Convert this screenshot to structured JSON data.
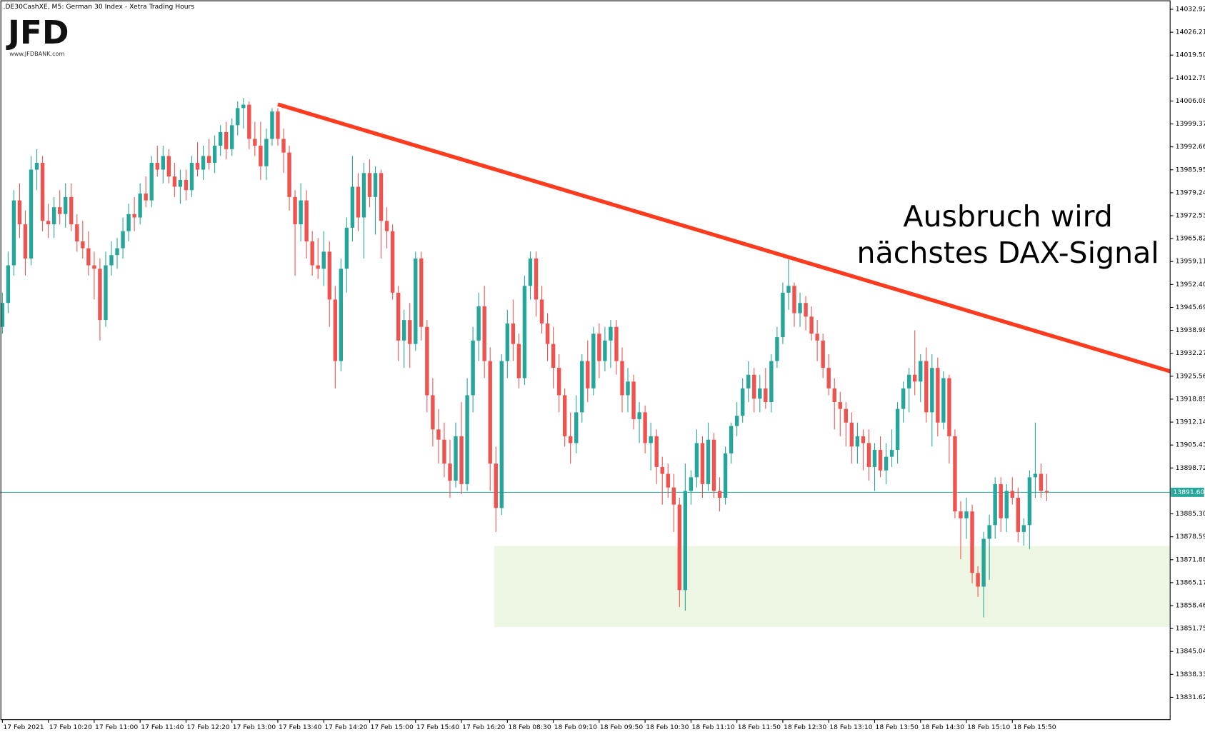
{
  "chart_data": {
    "type": "candlestick",
    "title": ".DE30CashXE, M5:  German 30 Index  - Xetra Trading Hours",
    "logo": "JFD",
    "logo_url": "www.JFDBANK.com",
    "annotation": [
      "Ausbruch wird",
      "nächstes DAX-Signal"
    ],
    "up_color": "#26a69a",
    "down_color": "#ef5350",
    "xlim": [
      -0.4,
      203.5
    ],
    "ylim": [
      13825.09,
      14035.63
    ],
    "xticks": [
      {
        "value": 0,
        "label": "17 Feb 2021"
      },
      {
        "value": 8,
        "label": "17 Feb 10:20"
      },
      {
        "value": 16,
        "label": "17 Feb 11:00"
      },
      {
        "value": 24,
        "label": "17 Feb 11:40"
      },
      {
        "value": 32,
        "label": "17 Feb 12:20"
      },
      {
        "value": 40,
        "label": "17 Feb 13:00"
      },
      {
        "value": 48,
        "label": "17 Feb 13:40"
      },
      {
        "value": 56,
        "label": "17 Feb 14:20"
      },
      {
        "value": 64,
        "label": "17 Feb 15:00"
      },
      {
        "value": 72,
        "label": "17 Feb 15:40"
      },
      {
        "value": 80,
        "label": "17 Feb 16:20"
      },
      {
        "value": 88,
        "label": "18 Feb 08:30"
      },
      {
        "value": 96,
        "label": "18 Feb 09:10"
      },
      {
        "value": 104,
        "label": "18 Feb 09:50"
      },
      {
        "value": 112,
        "label": "18 Feb 10:30"
      },
      {
        "value": 120,
        "label": "18 Feb 11:10"
      },
      {
        "value": 128,
        "label": "18 Feb 11:50"
      },
      {
        "value": 136,
        "label": "18 Feb 12:30"
      },
      {
        "value": 144,
        "label": "18 Feb 13:10"
      },
      {
        "value": 152,
        "label": "18 Feb 13:50"
      },
      {
        "value": 160,
        "label": "18 Feb 14:30"
      },
      {
        "value": 168,
        "label": "18 Feb 15:10"
      },
      {
        "value": 176,
        "label": "18 Feb 15:50"
      }
    ],
    "yticks": [
      14032.92,
      14026.21,
      {
        "value": 14019.5,
        "label": "14019.50"
      },
      14012.79,
      14006.08,
      13999.37,
      13992.66,
      13985.95,
      13979.24,
      13972.53,
      13965.82,
      13959.11,
      {
        "value": 13952.4,
        "label": "13952.40"
      },
      13945.69,
      13938.98,
      13932.27,
      13925.56,
      13918.85,
      13912.14,
      13905.43,
      13898.72,
      {
        "value": 13885.3,
        "label": "13885.30"
      },
      13878.59,
      13871.88,
      13865.17,
      13858.46,
      13851.75,
      13845.04,
      13838.33,
      13831.62
    ],
    "current_price": {
      "value": 13891.6,
      "label": "13891.60",
      "color": "#26a69a"
    },
    "trendline": {
      "color": "#ff3b1f",
      "points": [
        [
          48,
          14005.1
        ],
        [
          203.5,
          13927.0
        ]
      ]
    },
    "support_zone": {
      "color": "#eef7e3",
      "start": 85.7,
      "from": 13852.2,
      "to": 13875.9
    },
    "candles": [
      [
        13940,
        13950,
        13938,
        13947
      ],
      [
        13947,
        13962,
        13944,
        13958
      ],
      [
        13958,
        13980,
        13955,
        13977
      ],
      [
        13977,
        13982,
        13966,
        13970
      ],
      [
        13970,
        13974,
        13955,
        13960
      ],
      [
        13960,
        13990,
        13958,
        13986
      ],
      [
        13986,
        13992,
        13980,
        13988
      ],
      [
        13988,
        13990,
        13968,
        13971
      ],
      [
        13971,
        13976,
        13966,
        13970
      ],
      [
        13970,
        13978,
        13966,
        13975
      ],
      [
        13975,
        13980,
        13970,
        13973
      ],
      [
        13973,
        13982,
        13969,
        13978
      ],
      [
        13978,
        13982,
        13968,
        13970
      ],
      [
        13970,
        13973,
        13962,
        13965
      ],
      [
        13965,
        13971,
        13960,
        13963
      ],
      [
        13963,
        13968,
        13955,
        13958
      ],
      [
        13958,
        13962,
        13948,
        13957
      ],
      [
        13957,
        13960,
        13936,
        13942
      ],
      [
        13942,
        13962,
        13940,
        13958
      ],
      [
        13958,
        13965,
        13955,
        13961
      ],
      [
        13961,
        13966,
        13957,
        13963
      ],
      [
        13963,
        13972,
        13960,
        13968
      ],
      [
        13968,
        13976,
        13965,
        13973
      ],
      [
        13973,
        13978,
        13968,
        13972
      ],
      [
        13972,
        13982,
        13970,
        13979
      ],
      [
        13979,
        13984,
        13975,
        13977
      ],
      [
        13977,
        13990,
        13975,
        13988
      ],
      [
        13988,
        13993,
        13984,
        13986
      ],
      [
        13986,
        13993,
        13982,
        13990
      ],
      [
        13990,
        13992,
        13982,
        13984
      ],
      [
        13984,
        13988,
        13978,
        13981
      ],
      [
        13981,
        13986,
        13976,
        13983
      ],
      [
        13983,
        13986,
        13977,
        13980
      ],
      [
        13980,
        13990,
        13978,
        13988
      ],
      [
        13988,
        13994,
        13984,
        13986
      ],
      [
        13986,
        13993,
        13983,
        13990
      ],
      [
        13990,
        13995,
        13986,
        13988
      ],
      [
        13988,
        13996,
        13985,
        13993
      ],
      [
        13993,
        13999,
        13990,
        13997
      ],
      [
        13997,
        14000,
        13989,
        13992
      ],
      [
        13992,
        14001,
        13990,
        13999
      ],
      [
        13999,
        14006,
        13996,
        14004
      ],
      [
        14004,
        14007,
        13998,
        14005
      ],
      [
        14005,
        14006,
        13992,
        13995
      ],
      [
        13995,
        14000,
        13990,
        13993
      ],
      [
        13993,
        14000,
        13983,
        13987
      ],
      [
        13987,
        13998,
        13983,
        13995
      ],
      [
        13995,
        14004,
        13993,
        14003
      ],
      [
        14003,
        14004,
        13993,
        13995
      ],
      [
        13995,
        13998,
        13985,
        13991
      ],
      [
        13991,
        13993,
        13974,
        13978
      ],
      [
        13978,
        13980,
        13955,
        13970
      ],
      [
        13970,
        13982,
        13965,
        13977
      ],
      [
        13977,
        13980,
        13960,
        13965
      ],
      [
        13965,
        13968,
        13955,
        13958
      ],
      [
        13958,
        13966,
        13954,
        13957
      ],
      [
        13957,
        13968,
        13952,
        13962
      ],
      [
        13962,
        13965,
        13940,
        13948
      ],
      [
        13948,
        13952,
        13922,
        13930
      ],
      [
        13930,
        13960,
        13927,
        13957
      ],
      [
        13957,
        13972,
        13950,
        13969
      ],
      [
        13969,
        13990,
        13965,
        13981
      ],
      [
        13981,
        13985,
        13968,
        13972
      ],
      [
        13972,
        13988,
        13960,
        13985
      ],
      [
        13985,
        13989,
        13975,
        13978
      ],
      [
        13978,
        13987,
        13967,
        13985
      ],
      [
        13985,
        13986,
        13960,
        13971
      ],
      [
        13971,
        13975,
        13963,
        13968
      ],
      [
        13968,
        13970,
        13948,
        13950
      ],
      [
        13950,
        13952,
        13930,
        13936
      ],
      [
        13936,
        13945,
        13928,
        13942
      ],
      [
        13942,
        13947,
        13928,
        13935
      ],
      [
        13935,
        13962,
        13933,
        13960
      ],
      [
        13960,
        13962,
        13936,
        13940
      ],
      [
        13940,
        13942,
        13915,
        13920
      ],
      [
        13920,
        13925,
        13905,
        13910
      ],
      [
        13910,
        13916,
        13900,
        13907
      ],
      [
        13907,
        13912,
        13896,
        13900
      ],
      [
        13900,
        13907,
        13890,
        13895
      ],
      [
        13895,
        13912,
        13893,
        13908
      ],
      [
        13908,
        13918,
        13891,
        13894
      ],
      [
        13894,
        13925,
        13892,
        13920
      ],
      [
        13920,
        13940,
        13915,
        13936
      ],
      [
        13936,
        13950,
        13930,
        13946
      ],
      [
        13946,
        13952,
        13925,
        13930
      ],
      [
        13930,
        13934,
        13892,
        13900
      ],
      [
        13900,
        13905,
        13880,
        13887
      ],
      [
        13887,
        13932,
        13885,
        13930
      ],
      [
        13930,
        13945,
        13925,
        13941
      ],
      [
        13941,
        13948,
        13930,
        13935
      ],
      [
        13935,
        13938,
        13922,
        13925
      ],
      [
        13925,
        13955,
        13923,
        13952
      ],
      [
        13952,
        13962,
        13948,
        13960
      ],
      [
        13960,
        13962,
        13943,
        13948
      ],
      [
        13948,
        13952,
        13938,
        13941
      ],
      [
        13941,
        13944,
        13930,
        13935
      ],
      [
        13935,
        13940,
        13922,
        13928
      ],
      [
        13928,
        13932,
        13915,
        13920
      ],
      [
        13920,
        13922,
        13905,
        13908
      ],
      [
        13908,
        13915,
        13900,
        13906
      ],
      [
        13906,
        13920,
        13903,
        13915
      ],
      [
        13915,
        13932,
        13912,
        13930
      ],
      [
        13930,
        13936,
        13918,
        13922
      ],
      [
        13922,
        13940,
        13920,
        13938
      ],
      [
        13938,
        13941,
        13925,
        13930
      ],
      [
        13930,
        13940,
        13927,
        13936
      ],
      [
        13936,
        13942,
        13928,
        13940
      ],
      [
        13940,
        13942,
        13926,
        13930
      ],
      [
        13930,
        13934,
        13915,
        13920
      ],
      [
        13920,
        13928,
        13915,
        13924
      ],
      [
        13924,
        13926,
        13910,
        13913
      ],
      [
        13913,
        13918,
        13906,
        13915
      ],
      [
        13915,
        13917,
        13903,
        13906
      ],
      [
        13906,
        13912,
        13898,
        13908
      ],
      [
        13908,
        13910,
        13894,
        13899
      ],
      [
        13899,
        13902,
        13888,
        13897
      ],
      [
        13897,
        13900,
        13890,
        13893
      ],
      [
        13893,
        13897,
        13880,
        13888
      ],
      [
        13888,
        13890,
        13858,
        13863
      ],
      [
        13863,
        13900,
        13857,
        13892
      ],
      [
        13892,
        13898,
        13888,
        13896
      ],
      [
        13896,
        13910,
        13893,
        13906
      ],
      [
        13906,
        13908,
        13890,
        13894
      ],
      [
        13894,
        13912,
        13892,
        13907
      ],
      [
        13907,
        13909,
        13890,
        13892
      ],
      [
        13892,
        13896,
        13886,
        13890
      ],
      [
        13890,
        13905,
        13888,
        13903
      ],
      [
        13903,
        13912,
        13900,
        13911
      ],
      [
        13911,
        13918,
        13908,
        13914
      ],
      [
        13914,
        13925,
        13912,
        13922
      ],
      [
        13922,
        13930,
        13918,
        13926
      ],
      [
        13926,
        13928,
        13915,
        13919
      ],
      [
        13919,
        13926,
        13915,
        13922
      ],
      [
        13922,
        13928,
        13916,
        13918
      ],
      [
        13918,
        13932,
        13915,
        13930
      ],
      [
        13930,
        13940,
        13928,
        13937
      ],
      [
        13937,
        13953,
        13935,
        13950
      ],
      [
        13950,
        13960,
        13945,
        13952
      ],
      [
        13952,
        13953,
        13940,
        13944
      ],
      [
        13944,
        13950,
        13940,
        13947
      ],
      [
        13947,
        13949,
        13939,
        13943
      ],
      [
        13943,
        13946,
        13936,
        13938
      ],
      [
        13938,
        13942,
        13930,
        13936
      ],
      [
        13936,
        13938,
        13925,
        13928
      ],
      [
        13928,
        13932,
        13920,
        13922
      ],
      [
        13922,
        13925,
        13910,
        13918
      ],
      [
        13918,
        13921,
        13908,
        13916
      ],
      [
        13916,
        13918,
        13905,
        13912
      ],
      [
        13912,
        13915,
        13900,
        13905
      ],
      [
        13905,
        13912,
        13900,
        13908
      ],
      [
        13908,
        13910,
        13898,
        13906
      ],
      [
        13906,
        13910,
        13895,
        13899
      ],
      [
        13899,
        13906,
        13892,
        13904
      ],
      [
        13904,
        13908,
        13896,
        13898
      ],
      [
        13898,
        13906,
        13894,
        13902
      ],
      [
        13902,
        13910,
        13899,
        13904
      ],
      [
        13904,
        13918,
        13900,
        13916
      ],
      [
        13916,
        13924,
        13912,
        13922
      ],
      [
        13922,
        13928,
        13915,
        13926
      ],
      [
        13926,
        13939,
        13920,
        13924
      ],
      [
        13924,
        13932,
        13918,
        13930
      ],
      [
        13930,
        13934,
        13912,
        13915
      ],
      [
        13915,
        13932,
        13905,
        13928
      ],
      [
        13928,
        13931,
        13908,
        13912
      ],
      [
        13912,
        13927,
        13910,
        13925
      ],
      [
        13925,
        13926,
        13900,
        13908
      ],
      [
        13908,
        13910,
        13884,
        13886
      ],
      [
        13886,
        13889,
        13872,
        13884
      ],
      [
        13884,
        13890,
        13878,
        13886
      ],
      [
        13886,
        13888,
        13865,
        13868
      ],
      [
        13868,
        13870,
        13861,
        13864
      ],
      [
        13864,
        13880,
        13855,
        13878
      ],
      [
        13878,
        13885,
        13866,
        13882
      ],
      [
        13882,
        13896,
        13878,
        13894
      ],
      [
        13894,
        13896,
        13880,
        13884
      ],
      [
        13884,
        13894,
        13880,
        13892
      ],
      [
        13892,
        13896,
        13888,
        13890
      ],
      [
        13890,
        13893,
        13877,
        13880
      ],
      [
        13880,
        13884,
        13876,
        13882
      ],
      [
        13882,
        13898,
        13875,
        13896
      ],
      [
        13896,
        13912,
        13890,
        13897
      ],
      [
        13897,
        13900,
        13890,
        13892
      ],
      [
        13892,
        13897,
        13889,
        13891.6
      ]
    ]
  }
}
